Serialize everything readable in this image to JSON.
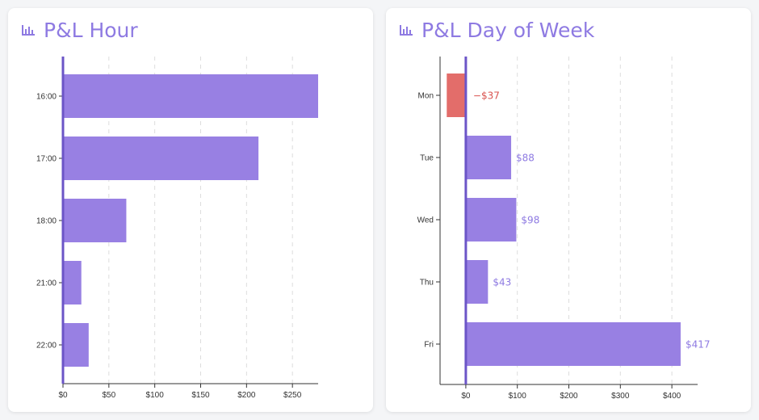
{
  "colors": {
    "accent": "#8e7ae2",
    "bar_positive": "#9880e3",
    "bar_negative": "#e36d6a",
    "label_positive": "#8e7ae2",
    "label_negative": "#d9534f",
    "zero_line": "#6b55c7",
    "grid": "#dddddd"
  },
  "icons": {
    "title_icon": "bar-chart-icon"
  },
  "chart_data": [
    {
      "type": "bar",
      "orientation": "horizontal",
      "title": "P&L Hour",
      "categories": [
        "16:00",
        "17:00",
        "18:00",
        "21:00",
        "22:00"
      ],
      "values": [
        278,
        213,
        69,
        20,
        28
      ],
      "xlim": [
        0,
        278
      ],
      "x_ticks": [
        0,
        50,
        100,
        150,
        200,
        250
      ],
      "x_tick_labels": [
        "$0",
        "$50",
        "$100",
        "$150",
        "$200",
        "$250"
      ],
      "grid": "vertical-dashed",
      "show_value_labels": false
    },
    {
      "type": "bar",
      "orientation": "horizontal",
      "title": "P&L Day of Week",
      "categories": [
        "Mon",
        "Tue",
        "Wed",
        "Thu",
        "Fri"
      ],
      "values": [
        -37,
        88,
        98,
        43,
        417
      ],
      "value_labels": [
        "−$37",
        "$88",
        "$98",
        "$43",
        "$417"
      ],
      "xlim": [
        -50,
        450
      ],
      "x_ticks": [
        0,
        100,
        200,
        300,
        400
      ],
      "x_tick_labels": [
        "$0",
        "$100",
        "$200",
        "$300",
        "$400"
      ],
      "grid": "vertical-dashed",
      "show_value_labels": true
    }
  ]
}
